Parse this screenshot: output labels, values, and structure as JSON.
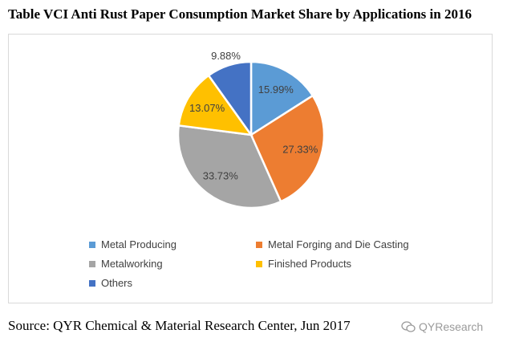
{
  "chart_data": {
    "type": "pie",
    "title": "Table VCI Anti Rust Paper Consumption Market Share by Applications in 2016",
    "slices": [
      {
        "name": "Metal Producing",
        "value": 15.99,
        "label": "15.99%",
        "color": "#5b9bd5"
      },
      {
        "name": "Metal Forging and Die Casting",
        "value": 27.33,
        "label": "27.33%",
        "color": "#ed7d31"
      },
      {
        "name": "Metalworking",
        "value": 33.73,
        "label": "33.73%",
        "color": "#a5a5a5"
      },
      {
        "name": "Finished Products",
        "value": 13.07,
        "label": "13.07%",
        "color": "#ffc000"
      },
      {
        "name": "Others",
        "value": 9.88,
        "label": "9.88%",
        "color": "#4472c4"
      }
    ],
    "legend_position": "bottom"
  },
  "source": "Source: QYR Chemical & Material Research Center, Jun 2017",
  "watermark": "QYResearch"
}
